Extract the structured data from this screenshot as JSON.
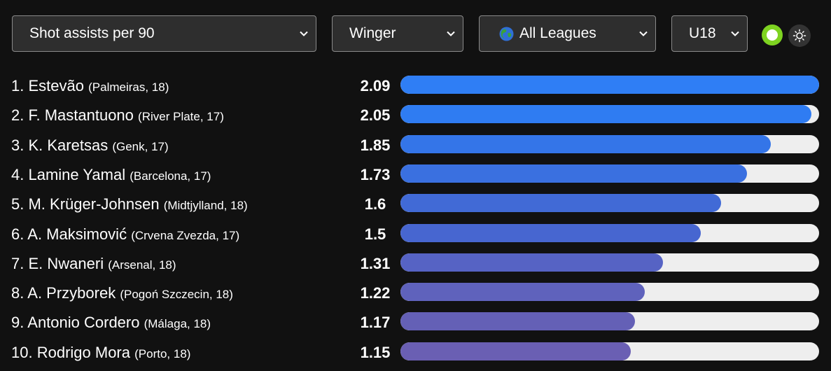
{
  "filters": {
    "metric": "Shot assists per 90",
    "position": "Winger",
    "league": "All Leagues",
    "age": "U18"
  },
  "players": [
    {
      "rank": "1.",
      "name": "Estevão",
      "club": "(Palmeiras, 18)",
      "value": "2.09",
      "pct": 1.0,
      "color": "#2f7ef5"
    },
    {
      "rank": "2.",
      "name": "F. Mastantuono",
      "club": "(River Plate, 17)",
      "value": "2.05",
      "pct": 0.981,
      "color": "#2f7cf2"
    },
    {
      "rank": "3.",
      "name": "K. Karetsas",
      "club": "(Genk, 17)",
      "value": "1.85",
      "pct": 0.885,
      "color": "#3475e8"
    },
    {
      "rank": "4.",
      "name": "Lamine Yamal",
      "club": "(Barcelona, 17)",
      "value": "1.73",
      "pct": 0.828,
      "color": "#3a70e0"
    },
    {
      "rank": "5.",
      "name": "M. Krüger-Johnsen",
      "club": "(Midtjylland, 18)",
      "value": "1.6",
      "pct": 0.766,
      "color": "#416ad6"
    },
    {
      "rank": "6.",
      "name": "A. Maksimović",
      "club": "(Crvena Zvezda, 17)",
      "value": "1.5",
      "pct": 0.718,
      "color": "#4766d0"
    },
    {
      "rank": "7.",
      "name": "E. Nwaneri",
      "club": "(Arsenal, 18)",
      "value": "1.31",
      "pct": 0.627,
      "color": "#5663c4"
    },
    {
      "rank": "8.",
      "name": "A. Przyborek",
      "club": "(Pogoń Szczecin, 18)",
      "value": "1.22",
      "pct": 0.584,
      "color": "#5f62bc"
    },
    {
      "rank": "9.",
      "name": "Antonio Cordero",
      "club": "(Málaga, 18)",
      "value": "1.17",
      "pct": 0.56,
      "color": "#6460b6"
    },
    {
      "rank": "10.",
      "name": "Rodrigo Mora",
      "club": "(Porto, 18)",
      "value": "1.15",
      "pct": 0.55,
      "color": "#6a5fb3"
    }
  ]
}
